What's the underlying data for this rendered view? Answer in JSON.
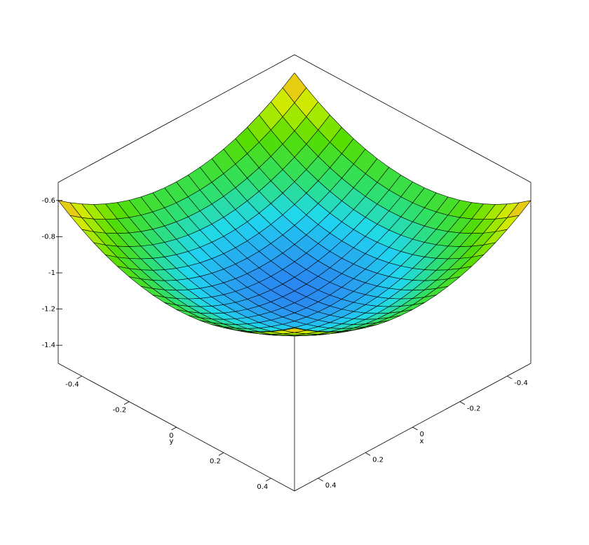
{
  "chart_data": {
    "type": "surface",
    "x": [
      -0.5,
      -0.45,
      -0.4,
      -0.35,
      -0.3,
      -0.25,
      -0.2,
      -0.15,
      -0.1,
      -0.05,
      0,
      0.05,
      0.1,
      0.15,
      0.2,
      0.25,
      0.3,
      0.35,
      0.4,
      0.45,
      0.5
    ],
    "y": [
      -0.5,
      -0.45,
      -0.4,
      -0.35,
      -0.3,
      -0.25,
      -0.2,
      -0.15,
      -0.1,
      -0.05,
      0,
      0.05,
      0.1,
      0.15,
      0.2,
      0.25,
      0.3,
      0.35,
      0.4,
      0.45,
      0.5
    ],
    "z": [
      [
        -0.6,
        -0.6475,
        -0.69,
        -0.7275,
        -0.76,
        -0.7875,
        -0.81,
        -0.8275,
        -0.84,
        -0.8475,
        -0.85,
        -0.8475,
        -0.84,
        -0.8275,
        -0.81,
        -0.7875,
        -0.76,
        -0.7275,
        -0.69,
        -0.6475,
        -0.6
      ],
      [
        -0.6475,
        -0.695,
        -0.7375,
        -0.775,
        -0.8075,
        -0.835,
        -0.8575,
        -0.875,
        -0.8875,
        -0.895,
        -0.8975,
        -0.895,
        -0.8875,
        -0.875,
        -0.8575,
        -0.835,
        -0.8075,
        -0.775,
        -0.7375,
        -0.695,
        -0.6475
      ],
      [
        -0.69,
        -0.7375,
        -0.78,
        -0.8175,
        -0.85,
        -0.8775,
        -0.9,
        -0.9175,
        -0.93,
        -0.9375,
        -0.94,
        -0.9375,
        -0.93,
        -0.9175,
        -0.9,
        -0.8775,
        -0.85,
        -0.8175,
        -0.78,
        -0.7375,
        -0.69
      ],
      [
        -0.7275,
        -0.775,
        -0.8175,
        -0.855,
        -0.8875,
        -0.915,
        -0.9375,
        -0.955,
        -0.9675,
        -0.975,
        -0.9775,
        -0.975,
        -0.9675,
        -0.955,
        -0.9375,
        -0.915,
        -0.8875,
        -0.855,
        -0.8175,
        -0.775,
        -0.7275
      ],
      [
        -0.76,
        -0.8075,
        -0.85,
        -0.8875,
        -0.92,
        -0.9475,
        -0.97,
        -0.9875,
        -1,
        -1.0075,
        -1.01,
        -1.0075,
        -1,
        -0.9875,
        -0.97,
        -0.9475,
        -0.92,
        -0.8875,
        -0.85,
        -0.8075,
        -0.76
      ],
      [
        -0.7875,
        -0.835,
        -0.8775,
        -0.915,
        -0.9475,
        -0.975,
        -0.9975,
        -1.015,
        -1.0275,
        -1.035,
        -1.0375,
        -1.035,
        -1.0275,
        -1.015,
        -0.9975,
        -0.975,
        -0.9475,
        -0.915,
        -0.8775,
        -0.835,
        -0.7875
      ],
      [
        -0.81,
        -0.8575,
        -0.9,
        -0.9375,
        -0.97,
        -0.9975,
        -1.02,
        -1.0375,
        -1.05,
        -1.0575,
        -1.06,
        -1.0575,
        -1.05,
        -1.0375,
        -1.02,
        -0.9975,
        -0.97,
        -0.9375,
        -0.9,
        -0.8575,
        -0.81
      ],
      [
        -0.8275,
        -0.875,
        -0.9175,
        -0.955,
        -0.9875,
        -1.015,
        -1.0375,
        -1.055,
        -1.0675,
        -1.075,
        -1.0775,
        -1.075,
        -1.0675,
        -1.055,
        -1.0375,
        -1.015,
        -0.9875,
        -0.955,
        -0.9175,
        -0.875,
        -0.8275
      ],
      [
        -0.84,
        -0.8875,
        -0.93,
        -0.9675,
        -1,
        -1.0275,
        -1.05,
        -1.0675,
        -1.08,
        -1.0875,
        -1.09,
        -1.0875,
        -1.08,
        -1.0675,
        -1.05,
        -1.0275,
        -1,
        -0.9675,
        -0.93,
        -0.8875,
        -0.84
      ],
      [
        -0.8475,
        -0.895,
        -0.9375,
        -0.975,
        -1.0075,
        -1.035,
        -1.0575,
        -1.075,
        -1.0875,
        -1.095,
        -1.0975,
        -1.095,
        -1.0875,
        -1.075,
        -1.0575,
        -1.035,
        -1.0075,
        -0.975,
        -0.9375,
        -0.895,
        -0.8475
      ],
      [
        -0.85,
        -0.8975,
        -0.94,
        -0.9775,
        -1.01,
        -1.0375,
        -1.06,
        -1.0775,
        -1.09,
        -1.0975,
        -1.1,
        -1.0975,
        -1.09,
        -1.0775,
        -1.06,
        -1.0375,
        -1.01,
        -0.9775,
        -0.94,
        -0.8975,
        -0.85
      ],
      [
        -0.8475,
        -0.895,
        -0.9375,
        -0.975,
        -1.0075,
        -1.035,
        -1.0575,
        -1.075,
        -1.0875,
        -1.095,
        -1.0975,
        -1.095,
        -1.0875,
        -1.075,
        -1.0575,
        -1.035,
        -1.0075,
        -0.975,
        -0.9375,
        -0.895,
        -0.8475
      ],
      [
        -0.84,
        -0.8875,
        -0.93,
        -0.9675,
        -1,
        -1.0275,
        -1.05,
        -1.0675,
        -1.08,
        -1.0875,
        -1.09,
        -1.0875,
        -1.08,
        -1.0675,
        -1.05,
        -1.0275,
        -1,
        -0.9675,
        -0.93,
        -0.8875,
        -0.84
      ],
      [
        -0.8275,
        -0.875,
        -0.9175,
        -0.955,
        -0.9875,
        -1.015,
        -1.0375,
        -1.055,
        -1.0675,
        -1.075,
        -1.0775,
        -1.075,
        -1.0675,
        -1.055,
        -1.0375,
        -1.015,
        -0.9875,
        -0.955,
        -0.9175,
        -0.875,
        -0.8275
      ],
      [
        -0.81,
        -0.8575,
        -0.9,
        -0.9375,
        -0.97,
        -0.9975,
        -1.02,
        -1.0375,
        -1.05,
        -1.0575,
        -1.06,
        -1.0575,
        -1.05,
        -1.0375,
        -1.02,
        -0.9975,
        -0.97,
        -0.9375,
        -0.9,
        -0.8575,
        -0.81
      ],
      [
        -0.7875,
        -0.835,
        -0.8775,
        -0.915,
        -0.9475,
        -0.975,
        -0.9975,
        -1.015,
        -1.0275,
        -1.035,
        -1.0375,
        -1.035,
        -1.0275,
        -1.015,
        -0.9975,
        -0.975,
        -0.9475,
        -0.915,
        -0.8775,
        -0.835,
        -0.7875
      ],
      [
        -0.76,
        -0.8075,
        -0.85,
        -0.8875,
        -0.92,
        -0.9475,
        -0.97,
        -0.9875,
        -1,
        -1.0075,
        -1.01,
        -1.0075,
        -1,
        -0.9875,
        -0.97,
        -0.9475,
        -0.92,
        -0.8875,
        -0.85,
        -0.8075,
        -0.76
      ],
      [
        -0.7275,
        -0.775,
        -0.8175,
        -0.855,
        -0.8875,
        -0.915,
        -0.9375,
        -0.955,
        -0.9675,
        -0.975,
        -0.9775,
        -0.975,
        -0.9675,
        -0.955,
        -0.9375,
        -0.915,
        -0.8875,
        -0.855,
        -0.8175,
        -0.775,
        -0.7275
      ],
      [
        -0.69,
        -0.7375,
        -0.78,
        -0.8175,
        -0.85,
        -0.8775,
        -0.9,
        -0.9175,
        -0.93,
        -0.9375,
        -0.94,
        -0.9375,
        -0.93,
        -0.9175,
        -0.9,
        -0.8775,
        -0.85,
        -0.8175,
        -0.78,
        -0.7375,
        -0.69
      ],
      [
        -0.6475,
        -0.695,
        -0.7375,
        -0.775,
        -0.8075,
        -0.835,
        -0.8575,
        -0.875,
        -0.8875,
        -0.895,
        -0.8975,
        -0.895,
        -0.8875,
        -0.875,
        -0.8575,
        -0.835,
        -0.8075,
        -0.775,
        -0.7375,
        -0.695,
        -0.6475
      ],
      [
        -0.6,
        -0.6475,
        -0.69,
        -0.7275,
        -0.76,
        -0.7875,
        -0.81,
        -0.8275,
        -0.84,
        -0.8475,
        -0.85,
        -0.8475,
        -0.84,
        -0.8275,
        -0.81,
        -0.7875,
        -0.76,
        -0.7275,
        -0.69,
        -0.6475,
        -0.6
      ]
    ],
    "xlim": [
      -0.5,
      0.5
    ],
    "ylim": [
      -0.5,
      0.5
    ],
    "zlim": [
      -1.5,
      -0.5
    ],
    "xticks": [
      -0.4,
      -0.2,
      0,
      0.2,
      0.4
    ],
    "yticks": [
      -0.4,
      -0.2,
      0,
      0.2,
      0.4
    ],
    "zticks": [
      -1.4,
      -1.2,
      -1,
      -0.8,
      -0.6
    ],
    "xlabel": "x",
    "ylabel": "y",
    "colormap": [
      "#2a86f0",
      "#20d8f0",
      "#30e060",
      "#55dd00",
      "#ccee00",
      "#ffb020"
    ],
    "edgecolor": "#000000"
  }
}
